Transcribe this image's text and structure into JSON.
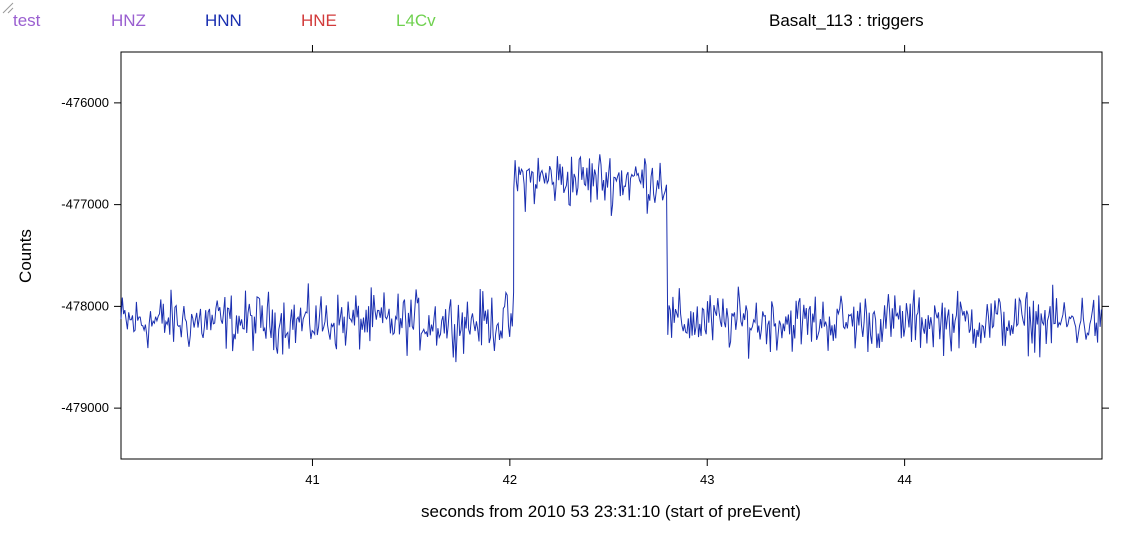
{
  "legend": [
    {
      "label": "test",
      "color": "#9a5fd0"
    },
    {
      "label": "HNZ",
      "color": "#9a5fd0"
    },
    {
      "label": "HNN",
      "color": "#1a2fb0"
    },
    {
      "label": "HNE",
      "color": "#d23b3b"
    },
    {
      "label": "L4Cv",
      "color": "#6fd14f"
    }
  ],
  "chart_data": {
    "type": "line",
    "title": "Basalt_113 : triggers",
    "xlabel": "seconds from  2010 53 23:31:10  (start of preEvent)",
    "ylabel": "Counts",
    "xlim": [
      40.03,
      45.0
    ],
    "ylim": [
      -479500,
      -475500
    ],
    "x_ticks": [
      "41",
      "42",
      "43",
      "44"
    ],
    "y_ticks": [
      "-476000",
      "-477000",
      "-478000",
      "-479000"
    ],
    "grid": false,
    "series": [
      {
        "name": "HNN",
        "color": "#1a2fb0",
        "segments": [
          {
            "x_start": 40.03,
            "x_end": 42.02,
            "center": -478150,
            "amplitude": 420
          },
          {
            "x_start": 42.02,
            "x_end": 42.8,
            "center": -476750,
            "amplitude": 420
          },
          {
            "x_start": 42.8,
            "x_end": 45.0,
            "center": -478150,
            "amplitude": 420
          }
        ]
      }
    ]
  }
}
